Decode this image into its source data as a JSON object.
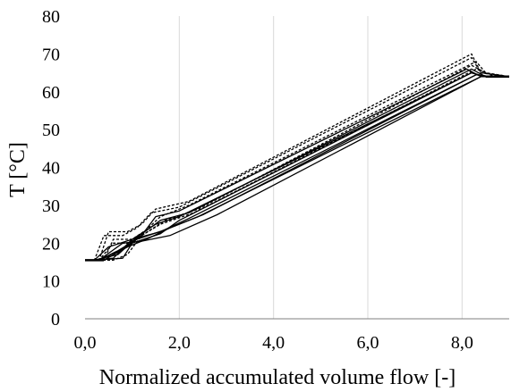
{
  "chart_data": {
    "type": "line",
    "title": "",
    "xlabel": "Normalized accumulated volume flow [-]",
    "ylabel": "T [°C]",
    "xlim": [
      0,
      9
    ],
    "ylim": [
      0,
      80
    ],
    "grid": "vertical",
    "legend": "none",
    "x_ticks": [
      0,
      2,
      4,
      6,
      8
    ],
    "x_tick_labels": [
      "0,0",
      "2,0",
      "4,0",
      "6,0",
      "8,0"
    ],
    "y_ticks": [
      0,
      10,
      20,
      30,
      40,
      50,
      60,
      70,
      80
    ],
    "y_tick_labels": [
      "0",
      "10",
      "20",
      "30",
      "40",
      "50",
      "60",
      "70",
      "80"
    ],
    "colors": {
      "series": "#000000",
      "grid": "#d9d9d9",
      "axis": "#7f7f7f"
    },
    "series": [
      {
        "style": "solid",
        "x": [
          0,
          0.2,
          0.8,
          1.0,
          1.6,
          2.0,
          8.2,
          8.5,
          9.0
        ],
        "y": [
          15.5,
          15.5,
          16,
          20,
          22.5,
          26,
          65,
          64,
          64
        ]
      },
      {
        "style": "solid",
        "x": [
          0,
          0.2,
          0.6,
          1.0,
          1.6,
          2.2,
          8.3,
          8.6,
          9.0
        ],
        "y": [
          15.5,
          15.5,
          16,
          21,
          23,
          26.5,
          64.5,
          64,
          64
        ]
      },
      {
        "style": "solid",
        "x": [
          0,
          0.3,
          0.7,
          1.1,
          1.7,
          2.4,
          8.4,
          8.7,
          9.0
        ],
        "y": [
          15.5,
          15.5,
          18,
          21,
          23.5,
          27,
          64,
          64,
          64
        ]
      },
      {
        "style": "solid",
        "x": [
          0,
          0.2,
          0.5,
          1.0,
          1.5,
          2.0,
          8.2,
          8.5,
          9.0
        ],
        "y": [
          15.5,
          15.5,
          19,
          21,
          25,
          27,
          65,
          64,
          64
        ]
      },
      {
        "style": "solid",
        "x": [
          0,
          0.3,
          0.8,
          1.2,
          1.8,
          2.8,
          8.4,
          8.7,
          9.0
        ],
        "y": [
          15.5,
          15.5,
          20,
          20.5,
          22,
          27.5,
          64,
          64,
          64
        ]
      },
      {
        "style": "solid",
        "x": [
          0,
          0.4,
          0.9,
          1.3,
          1.8,
          2.5,
          8.3,
          8.6,
          9.0
        ],
        "y": [
          15.5,
          15.5,
          19,
          21,
          24,
          27.5,
          64.5,
          64,
          64
        ]
      },
      {
        "style": "solid",
        "x": [
          0,
          0.2,
          0.7,
          1.1,
          1.6,
          2.2,
          8.2,
          8.5,
          9.0
        ],
        "y": [
          15.5,
          15.5,
          17,
          21.5,
          26,
          28,
          66,
          64,
          64
        ]
      },
      {
        "style": "solid",
        "x": [
          0,
          0.3,
          0.9,
          1.2,
          1.5,
          2.0,
          8.1,
          8.4,
          9.0
        ],
        "y": [
          15.5,
          15.5,
          19,
          22,
          27,
          28.5,
          66,
          64,
          64
        ]
      },
      {
        "style": "dashed",
        "x": [
          0,
          0.3,
          0.5,
          0.9,
          1.2,
          1.5,
          2.2,
          8.2,
          8.4,
          9.0
        ],
        "y": [
          15.5,
          15.5,
          23,
          23,
          25,
          29,
          31,
          70,
          65,
          64
        ]
      },
      {
        "style": "dashed",
        "x": [
          0,
          0.2,
          0.4,
          0.8,
          1.1,
          1.4,
          2.0,
          8.2,
          8.4,
          9.0
        ],
        "y": [
          15.5,
          15.5,
          22,
          22,
          24,
          28,
          29.5,
          69,
          65,
          64
        ]
      },
      {
        "style": "dashed",
        "x": [
          0,
          0.4,
          0.6,
          1.0,
          1.3,
          1.6,
          2.2,
          8.3,
          8.5,
          9.0
        ],
        "y": [
          15.5,
          15.5,
          21,
          21,
          23.5,
          27,
          30,
          68,
          65,
          64
        ]
      },
      {
        "style": "dashed",
        "x": [
          0,
          0.3,
          0.6,
          0.9,
          1.2,
          1.7,
          2.4,
          8.2,
          8.5,
          9.0
        ],
        "y": [
          15.5,
          15.5,
          20,
          20,
          22,
          26,
          29,
          67,
          65,
          64
        ]
      },
      {
        "style": "dashed",
        "x": [
          0,
          0.6,
          0.9,
          1.2,
          1.6,
          2.3,
          8.3,
          8.6,
          9.0
        ],
        "y": [
          15.5,
          15.5,
          17,
          22,
          25,
          28,
          66,
          64.5,
          64
        ]
      }
    ]
  }
}
